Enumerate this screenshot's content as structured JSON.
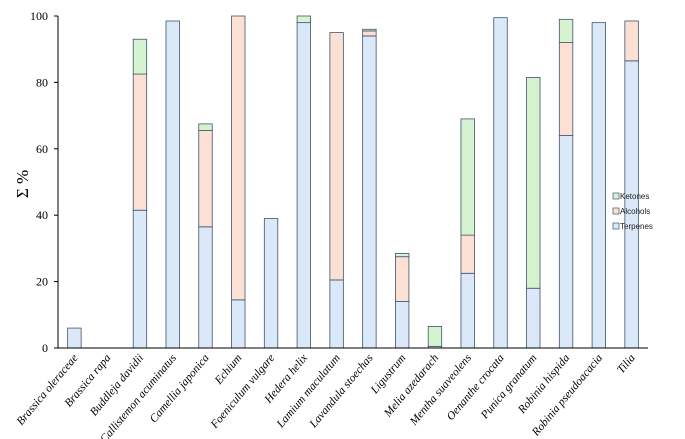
{
  "chart_data": {
    "type": "bar",
    "stacked": true,
    "title": "",
    "xlabel": "",
    "ylabel": "Σ %",
    "ylim": [
      0,
      100
    ],
    "yticks": [
      0,
      20,
      40,
      60,
      80,
      100
    ],
    "grid": false,
    "legend_position": "right",
    "categories": [
      "Brassica oleraceae",
      "Brassica rapa",
      "Buddleja davidii",
      "Callistemon acuminatus",
      "Camellia japonica",
      "Echium",
      "Foeniculum vulgare",
      "Hedera helix",
      "Lamium maculatum",
      "Lavandula stoechas",
      "Ligustrum",
      "Melia azedarach",
      "Mentha suaveolens",
      "Oenanthe crocata",
      "Punica granatum",
      "Robinia hispida",
      "Robinia pseudoacacia",
      "Tilia"
    ],
    "series": [
      {
        "name": "Terpenes",
        "color": "#dae8f7",
        "values": [
          6,
          0,
          41.5,
          98.5,
          36.5,
          14.5,
          39,
          98,
          20.5,
          94,
          14,
          0.5,
          22.5,
          99.5,
          18,
          64,
          98,
          86.5
        ]
      },
      {
        "name": "Alcohols",
        "color": "#fbe0d3",
        "values": [
          0,
          0,
          41,
          0,
          29,
          85.5,
          0,
          0,
          74.5,
          1.5,
          13.5,
          0,
          11.5,
          0,
          0,
          28,
          0,
          12
        ]
      },
      {
        "name": "Ketones",
        "color": "#d6f3cf",
        "values": [
          0,
          0,
          10.5,
          0,
          2,
          0,
          0,
          2,
          0,
          0.5,
          1,
          6,
          35,
          0,
          63.5,
          7,
          0,
          0
        ]
      }
    ]
  }
}
